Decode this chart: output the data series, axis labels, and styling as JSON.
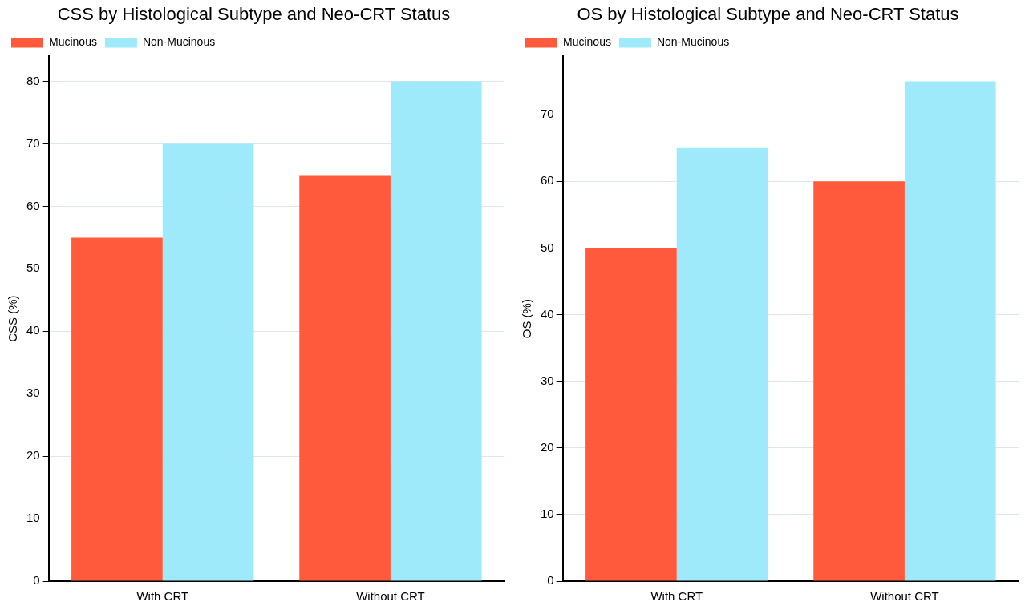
{
  "chart_data": [
    {
      "type": "bar",
      "title": "CSS by Histological Subtype and Neo-CRT Status",
      "ylabel": "CSS (%)",
      "categories": [
        "With CRT",
        "Without CRT"
      ],
      "series": [
        {
          "name": "Mucinous",
          "color": "#ff5a3c",
          "values": [
            55,
            65
          ]
        },
        {
          "name": "Non-Mucinous",
          "color": "#9eeafa",
          "values": [
            70,
            80
          ]
        }
      ],
      "ylim": [
        0,
        84
      ],
      "yticks": [
        0,
        10,
        20,
        30,
        40,
        50,
        60,
        70,
        80
      ],
      "grid": "y",
      "legend": "top left"
    },
    {
      "type": "bar",
      "title": "OS by Histological Subtype and Neo-CRT Status",
      "ylabel": "OS (%)",
      "categories": [
        "With CRT",
        "Without CRT"
      ],
      "series": [
        {
          "name": "Mucinous",
          "color": "#ff5a3c",
          "values": [
            50,
            60
          ]
        },
        {
          "name": "Non-Mucinous",
          "color": "#9eeafa",
          "values": [
            65,
            75
          ]
        }
      ],
      "ylim": [
        0,
        78.75
      ],
      "yticks": [
        0,
        10,
        20,
        30,
        40,
        50,
        60,
        70
      ],
      "grid": "y",
      "legend": "top left"
    }
  ]
}
